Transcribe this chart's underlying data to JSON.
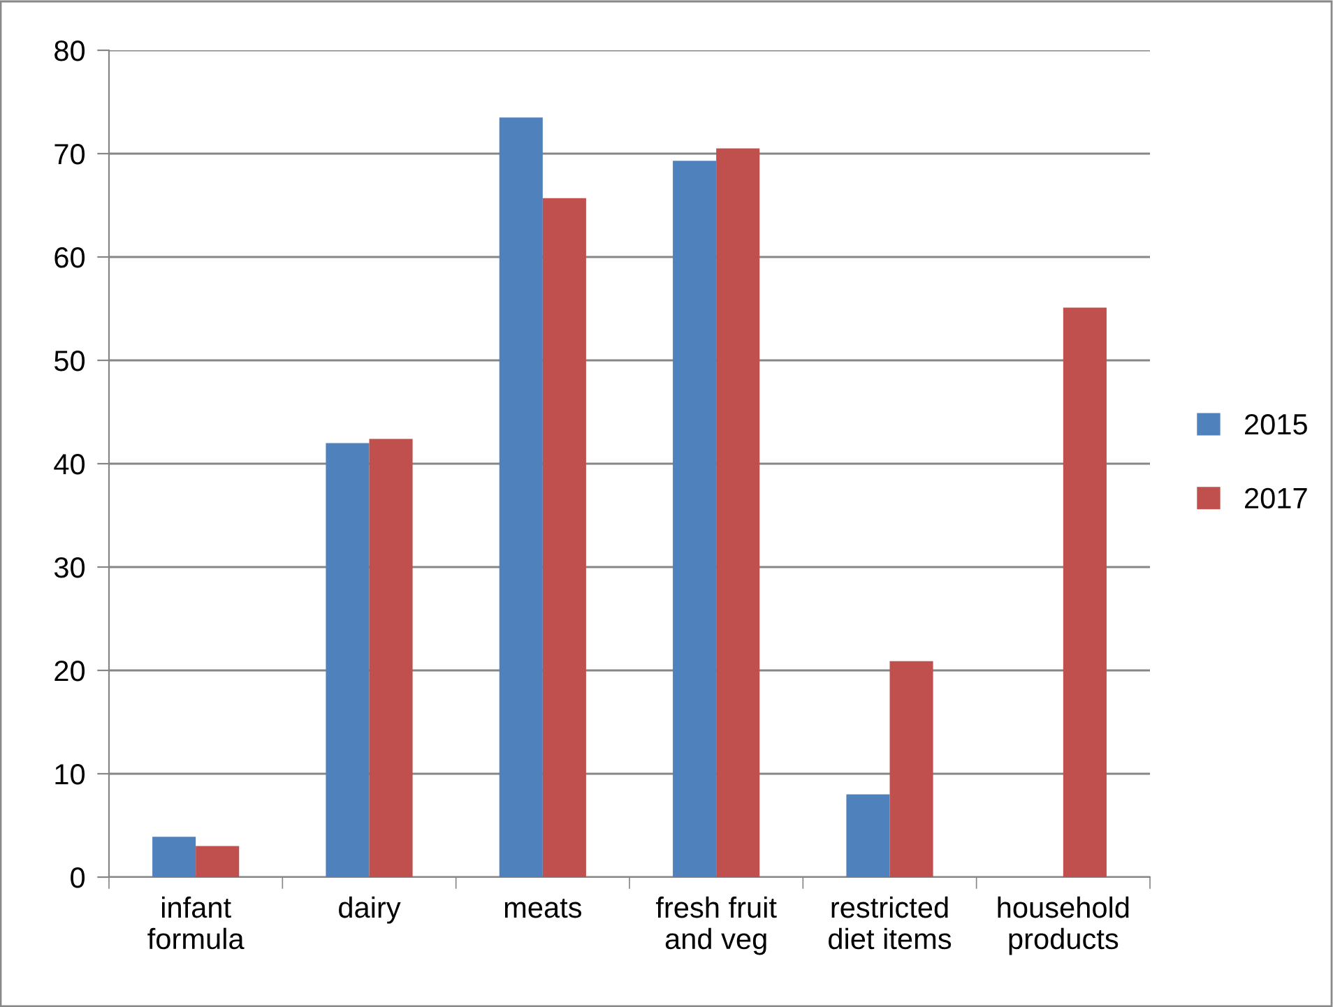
{
  "chart_data": {
    "type": "bar",
    "categories": [
      "infant\nformula",
      "dairy",
      "meats",
      "fresh fruit\nand veg",
      "restricted\ndiet items",
      "household\nproducts"
    ],
    "series": [
      {
        "name": "2015",
        "color": "#4f81bd",
        "values": [
          3.9,
          42.0,
          73.5,
          69.3,
          8.0,
          null
        ]
      },
      {
        "name": "2017",
        "color": "#c0504d",
        "values": [
          3.0,
          42.4,
          65.7,
          70.5,
          20.9,
          55.1
        ]
      }
    ],
    "ylim": [
      0,
      80
    ],
    "yticks": [
      0,
      10,
      20,
      30,
      40,
      50,
      60,
      70,
      80
    ],
    "grid": "y",
    "legend": "right"
  }
}
